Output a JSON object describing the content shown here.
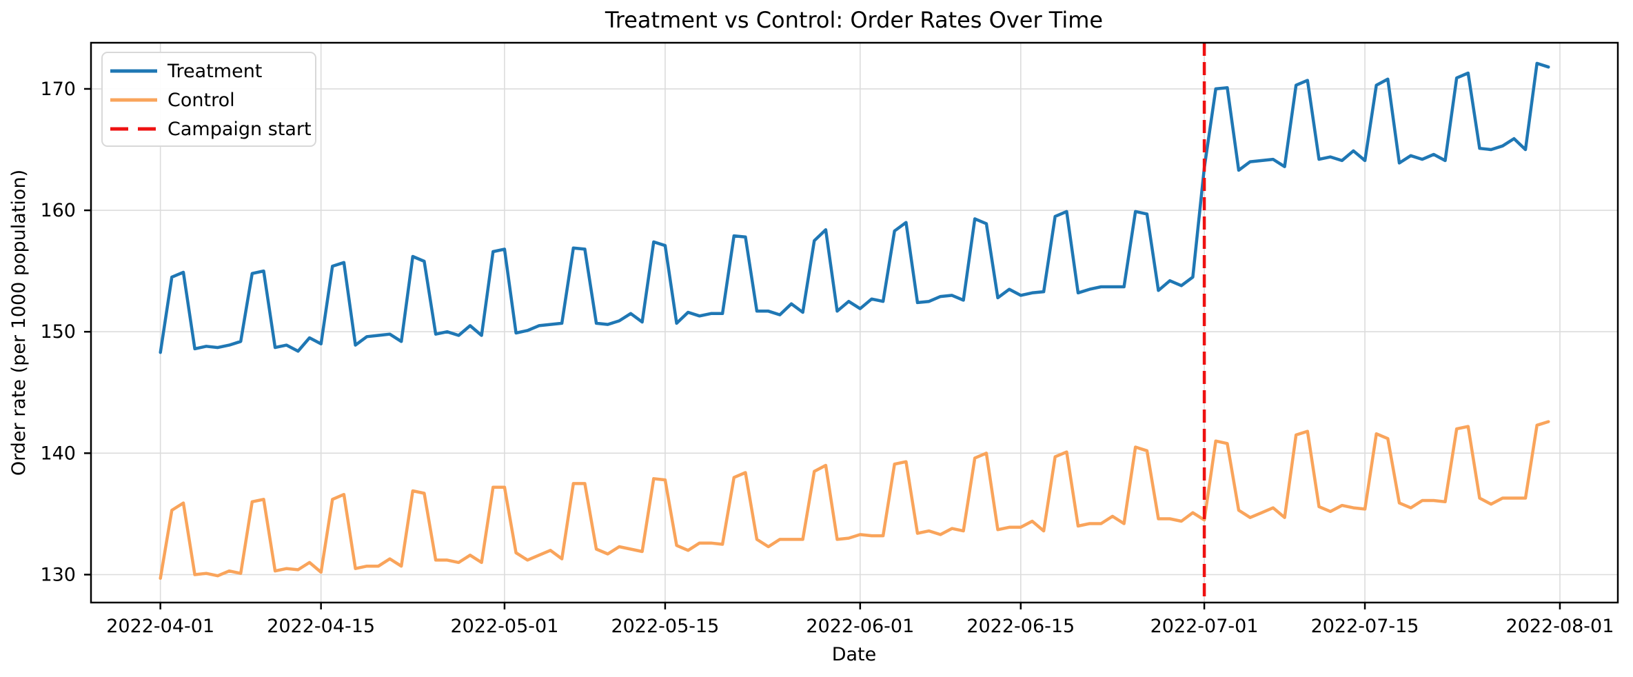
{
  "figure": {
    "background": "#ffffff",
    "spine_color": "#000000",
    "text_color": "#000000"
  },
  "chart_data": {
    "type": "line",
    "title": "Treatment vs Control: Order Rates Over Time",
    "xlabel": "Date",
    "ylabel": "Order rate (per 1000 population)",
    "grid": true,
    "grid_color": "#dcdcdc",
    "legend_position": "upper left",
    "ylim": [
      127.7,
      173.8
    ],
    "xlim_days": [
      -6.05,
      127.05
    ],
    "y_ticks": [
      130,
      140,
      150,
      160,
      170
    ],
    "x_tick_labels": [
      "2022-04-01",
      "2022-04-15",
      "2022-05-01",
      "2022-05-15",
      "2022-06-01",
      "2022-06-15",
      "2022-07-01",
      "2022-07-15",
      "2022-08-01"
    ],
    "x_tick_day_offsets": [
      0,
      14,
      30,
      44,
      61,
      75,
      91,
      105,
      122
    ],
    "dates": [
      "2022-04-01",
      "2022-04-02",
      "2022-04-03",
      "2022-04-04",
      "2022-04-05",
      "2022-04-06",
      "2022-04-07",
      "2022-04-08",
      "2022-04-09",
      "2022-04-10",
      "2022-04-11",
      "2022-04-12",
      "2022-04-13",
      "2022-04-14",
      "2022-04-15",
      "2022-04-16",
      "2022-04-17",
      "2022-04-18",
      "2022-04-19",
      "2022-04-20",
      "2022-04-21",
      "2022-04-22",
      "2022-04-23",
      "2022-04-24",
      "2022-04-25",
      "2022-04-26",
      "2022-04-27",
      "2022-04-28",
      "2022-04-29",
      "2022-04-30",
      "2022-05-01",
      "2022-05-02",
      "2022-05-03",
      "2022-05-04",
      "2022-05-05",
      "2022-05-06",
      "2022-05-07",
      "2022-05-08",
      "2022-05-09",
      "2022-05-10",
      "2022-05-11",
      "2022-05-12",
      "2022-05-13",
      "2022-05-14",
      "2022-05-15",
      "2022-05-16",
      "2022-05-17",
      "2022-05-18",
      "2022-05-19",
      "2022-05-20",
      "2022-05-21",
      "2022-05-22",
      "2022-05-23",
      "2022-05-24",
      "2022-05-25",
      "2022-05-26",
      "2022-05-27",
      "2022-05-28",
      "2022-05-29",
      "2022-05-30",
      "2022-05-31",
      "2022-06-01",
      "2022-06-02",
      "2022-06-03",
      "2022-06-04",
      "2022-06-05",
      "2022-06-06",
      "2022-06-07",
      "2022-06-08",
      "2022-06-09",
      "2022-06-10",
      "2022-06-11",
      "2022-06-12",
      "2022-06-13",
      "2022-06-14",
      "2022-06-15",
      "2022-06-16",
      "2022-06-17",
      "2022-06-18",
      "2022-06-19",
      "2022-06-20",
      "2022-06-21",
      "2022-06-22",
      "2022-06-23",
      "2022-06-24",
      "2022-06-25",
      "2022-06-26",
      "2022-06-27",
      "2022-06-28",
      "2022-06-29",
      "2022-06-30",
      "2022-07-01",
      "2022-07-02",
      "2022-07-03",
      "2022-07-04",
      "2022-07-05",
      "2022-07-06",
      "2022-07-07",
      "2022-07-08",
      "2022-07-09",
      "2022-07-10",
      "2022-07-11",
      "2022-07-12",
      "2022-07-13",
      "2022-07-14",
      "2022-07-15",
      "2022-07-16",
      "2022-07-17",
      "2022-07-18",
      "2022-07-19",
      "2022-07-20",
      "2022-07-21",
      "2022-07-22",
      "2022-07-23",
      "2022-07-24",
      "2022-07-25",
      "2022-07-26",
      "2022-07-27",
      "2022-07-28",
      "2022-07-29",
      "2022-07-30",
      "2022-07-31"
    ],
    "series": [
      {
        "name": "Treatment",
        "color": "#1f77b4",
        "style": "solid",
        "values": [
          148.3,
          154.5,
          154.9,
          148.6,
          148.8,
          148.7,
          148.9,
          149.2,
          154.8,
          155.0,
          148.7,
          148.9,
          148.4,
          149.5,
          149.0,
          155.4,
          155.7,
          148.9,
          149.6,
          149.7,
          149.8,
          149.2,
          156.2,
          155.8,
          149.8,
          150.0,
          149.7,
          150.5,
          149.7,
          156.6,
          156.8,
          149.9,
          150.1,
          150.5,
          150.6,
          150.7,
          156.9,
          156.8,
          150.7,
          150.6,
          150.9,
          151.5,
          150.8,
          157.4,
          157.1,
          150.7,
          151.6,
          151.3,
          151.5,
          151.5,
          157.9,
          157.8,
          151.7,
          151.7,
          151.4,
          152.3,
          151.6,
          157.5,
          158.4,
          151.7,
          152.5,
          151.9,
          152.7,
          152.5,
          158.3,
          159.0,
          152.4,
          152.5,
          152.9,
          153.0,
          152.6,
          159.3,
          158.9,
          152.8,
          153.5,
          153.0,
          153.2,
          153.3,
          159.5,
          159.9,
          153.2,
          153.5,
          153.7,
          153.7,
          153.7,
          159.9,
          159.7,
          153.4,
          154.2,
          153.8,
          154.5,
          163.5,
          170.0,
          170.1,
          163.3,
          164.0,
          164.1,
          164.2,
          163.6,
          170.3,
          170.7,
          164.2,
          164.4,
          164.1,
          164.9,
          164.1,
          170.3,
          170.8,
          163.9,
          164.5,
          164.2,
          164.6,
          164.1,
          170.9,
          171.3,
          165.1,
          165.0,
          165.3,
          165.9,
          165.0,
          172.1,
          171.8
        ]
      },
      {
        "name": "Control",
        "color": "#f9a45b",
        "style": "solid",
        "values": [
          129.7,
          135.3,
          135.9,
          130.0,
          130.1,
          129.9,
          130.3,
          130.1,
          136.0,
          136.2,
          130.3,
          130.5,
          130.4,
          131.0,
          130.2,
          136.2,
          136.6,
          130.5,
          130.7,
          130.7,
          131.3,
          130.7,
          136.9,
          136.7,
          131.2,
          131.2,
          131.0,
          131.6,
          131.0,
          137.2,
          137.2,
          131.8,
          131.2,
          131.6,
          132.0,
          131.3,
          137.5,
          137.5,
          132.1,
          131.7,
          132.3,
          132.1,
          131.9,
          137.9,
          137.8,
          132.4,
          132.0,
          132.6,
          132.6,
          132.5,
          138.0,
          138.4,
          132.9,
          132.3,
          132.9,
          132.9,
          132.9,
          138.5,
          139.0,
          132.9,
          133.0,
          133.3,
          133.2,
          133.2,
          139.1,
          139.3,
          133.4,
          133.6,
          133.3,
          133.8,
          133.6,
          139.6,
          140.0,
          133.7,
          133.9,
          133.9,
          134.4,
          133.6,
          139.7,
          140.1,
          134.0,
          134.2,
          134.2,
          134.8,
          134.2,
          140.5,
          140.2,
          134.6,
          134.6,
          134.4,
          135.1,
          134.5,
          141.0,
          140.8,
          135.3,
          134.7,
          135.1,
          135.5,
          134.7,
          141.5,
          141.8,
          135.6,
          135.2,
          135.7,
          135.5,
          135.4,
          141.6,
          141.2,
          135.9,
          135.5,
          136.1,
          136.1,
          136.0,
          142.0,
          142.2,
          136.3,
          135.8,
          136.3,
          136.3,
          136.3,
          142.3,
          142.6
        ]
      }
    ],
    "annotations": [
      {
        "type": "vline",
        "label": "Campaign start",
        "date": "2022-07-01",
        "day_offset": 91,
        "color": "#ee1111",
        "style": "dashed"
      }
    ]
  }
}
